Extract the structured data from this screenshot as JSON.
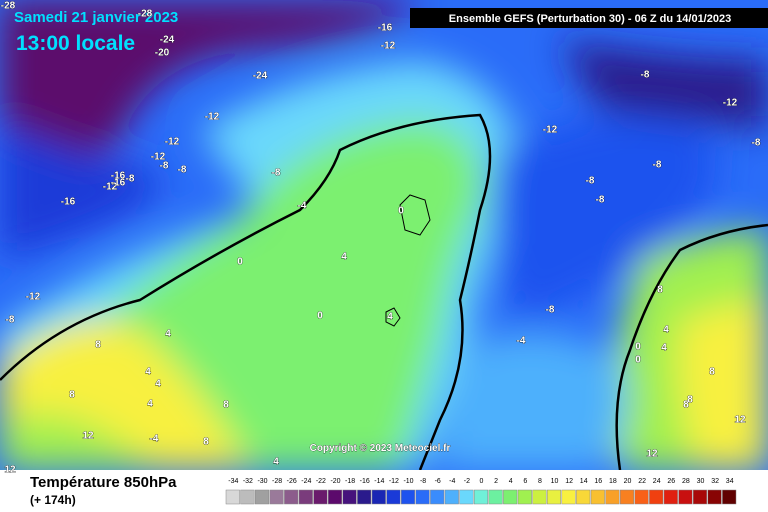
{
  "header": {
    "date": "Samedi 21 janvier 2023",
    "time": "13:00 locale",
    "run": "Ensemble GEFS  (Perturbation 30)  - 06 Z du 14/01/2023"
  },
  "copyright": "Copyright © 2023 Meteociel.fr",
  "footer": {
    "title": "Température 850hPa",
    "lead": "(+ 174h)"
  },
  "contour_labels": [
    -28,
    -28,
    -24,
    -20,
    -16,
    -12,
    -24,
    -12,
    -12,
    -12,
    -16,
    -8,
    -8,
    -16,
    -12,
    -16,
    -8,
    -4,
    0,
    -8,
    -12,
    -8,
    -8,
    -8,
    -12,
    -8,
    0,
    4,
    0,
    0,
    4,
    -8,
    -4,
    0,
    -12,
    -8,
    -8,
    8,
    4,
    4,
    4,
    8,
    4,
    8,
    12,
    -4,
    8,
    4,
    8,
    12,
    8,
    4,
    4,
    8,
    8,
    12,
    12
  ],
  "legend": {
    "values": [
      -34,
      -32,
      -30,
      -28,
      -26,
      -24,
      -22,
      -20,
      -18,
      -16,
      -14,
      -12,
      -10,
      -8,
      -6,
      -4,
      -2,
      0,
      2,
      4,
      6,
      8,
      10,
      12,
      14,
      16,
      18,
      20,
      22,
      24,
      26,
      28,
      30,
      32,
      34
    ],
    "colors": [
      "#d8d8d8",
      "#bcbcbc",
      "#a0a0a0",
      "#9a7a9a",
      "#8c5c8c",
      "#7a3c7c",
      "#6a1a6c",
      "#5c0a6c",
      "#46127c",
      "#2a1a8c",
      "#1a26b4",
      "#1a3ad8",
      "#1e52ee",
      "#2a6cf8",
      "#3a8cfc",
      "#4eb0fc",
      "#6ad8fc",
      "#70f0d8",
      "#6cf0a0",
      "#7cf070",
      "#a0f050",
      "#ccf040",
      "#e8f040",
      "#f8f040",
      "#f8d838",
      "#f8c030",
      "#f8a028",
      "#f88020",
      "#f86018",
      "#f04010",
      "#e02010",
      "#c81010",
      "#a80808",
      "#880404",
      "#600000"
    ]
  }
}
